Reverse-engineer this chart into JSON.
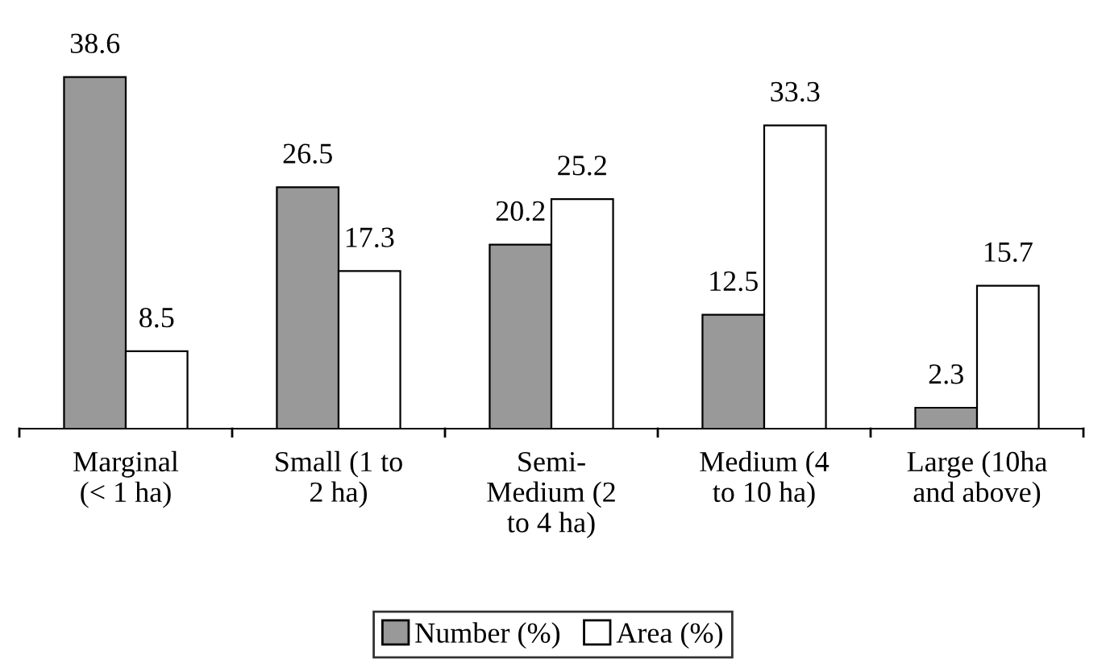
{
  "chart_data": {
    "type": "bar",
    "categories": [
      "Marginal\n(< 1 ha)",
      "Small (1 to\n2 ha)",
      "Semi-\nMedium (2\nto 4 ha)",
      "Medium (4\nto 10 ha)",
      "Large (10ha\nand above)"
    ],
    "series": [
      {
        "name": "Number (%)",
        "color": "#999999",
        "values": [
          38.6,
          26.5,
          20.2,
          12.5,
          2.3
        ]
      },
      {
        "name": "Area (%)",
        "color": "#ffffff",
        "values": [
          8.5,
          17.3,
          25.2,
          33.3,
          15.7
        ]
      }
    ],
    "data_labels": true,
    "legend": "bottom",
    "grid": false
  }
}
